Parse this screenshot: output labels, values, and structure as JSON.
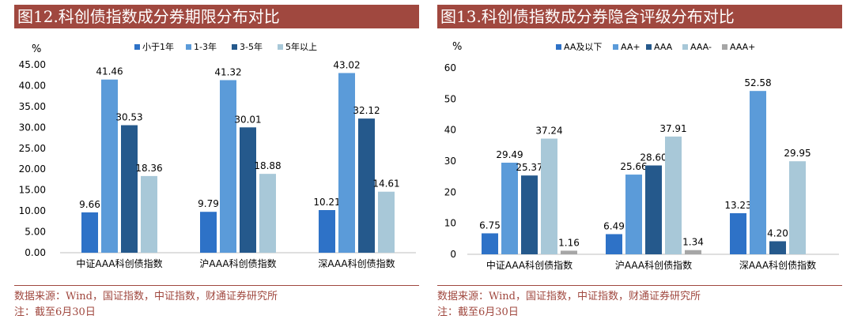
{
  "left": {
    "title": "图12.科创债指数成分券期限分布对比",
    "source": "数据来源：Wind，国证指数，中证指数，财通证券研究所",
    "note": "注：截至6月30日"
  },
  "right": {
    "title": "图13.科创债指数成分券隐含评级分布对比",
    "source": "数据来源：Wind，国证指数，中证指数，财通证券研究所",
    "note": "注：截至6月30日"
  },
  "chart_data": [
    {
      "type": "bar",
      "title": "图12.科创债指数成分券期限分布对比",
      "ylabel": "%",
      "ylim": [
        0,
        45
      ],
      "yticks": [
        "0.00",
        "5.00",
        "10.00",
        "15.00",
        "20.00",
        "25.00",
        "30.00",
        "35.00",
        "40.00",
        "45.00"
      ],
      "ytick_values": [
        0,
        5,
        10,
        15,
        20,
        25,
        30,
        35,
        40,
        45
      ],
      "grid": false,
      "legend_position": "top",
      "categories": [
        "中证AAA科创债指数",
        "沪AAA科创债指数",
        "深AAA科创债指数"
      ],
      "series": [
        {
          "name": "小于1年",
          "color": "#2e72c7",
          "values": [
            9.66,
            9.79,
            10.21
          ],
          "labels": [
            "9.66",
            "9.79",
            "10.21"
          ]
        },
        {
          "name": "1-3年",
          "color": "#5b9bd9",
          "values": [
            41.46,
            41.32,
            43.02
          ],
          "labels": [
            "41.46",
            "41.32",
            "43.02"
          ]
        },
        {
          "name": "3-5年",
          "color": "#25598c",
          "values": [
            30.53,
            30.01,
            32.12
          ],
          "labels": [
            "30.53",
            "30.01",
            "32.12"
          ]
        },
        {
          "name": "5年以上",
          "color": "#a8c8d8",
          "values": [
            18.36,
            18.88,
            14.61
          ],
          "labels": [
            "18.36",
            "18.88",
            "14.61"
          ]
        }
      ]
    },
    {
      "type": "bar",
      "title": "图13.科创债指数成分券隐含评级分布对比",
      "ylabel": "%",
      "ylim": [
        0,
        60
      ],
      "yticks": [
        "0",
        "10",
        "20",
        "30",
        "40",
        "50",
        "60"
      ],
      "ytick_values": [
        0,
        10,
        20,
        30,
        40,
        50,
        60
      ],
      "grid": false,
      "legend_position": "top",
      "categories": [
        "中证AAA科创债指数",
        "沪AAA科创债指数",
        "深AAA科创债指数"
      ],
      "series": [
        {
          "name": "AA及以下",
          "color": "#2e72c7",
          "values": [
            6.75,
            6.49,
            13.23
          ],
          "labels": [
            "6.75",
            "6.49",
            "13.23"
          ]
        },
        {
          "name": "AA+",
          "color": "#5b9bd9",
          "values": [
            29.49,
            25.66,
            52.58
          ],
          "labels": [
            "29.49",
            "25.66",
            "52.58"
          ]
        },
        {
          "name": "AAA",
          "color": "#25598c",
          "values": [
            25.37,
            28.6,
            4.2
          ],
          "labels": [
            "25.37",
            "28.60",
            "4.20"
          ]
        },
        {
          "name": "AAA-",
          "color": "#a8c8d8",
          "values": [
            37.24,
            37.91,
            29.95
          ],
          "labels": [
            "37.24",
            "37.91",
            "29.95"
          ]
        },
        {
          "name": "AAA+",
          "color": "#a6a6a6",
          "values": [
            1.16,
            1.34,
            null
          ],
          "labels": [
            "1.16",
            "1.34",
            ""
          ]
        }
      ]
    }
  ]
}
